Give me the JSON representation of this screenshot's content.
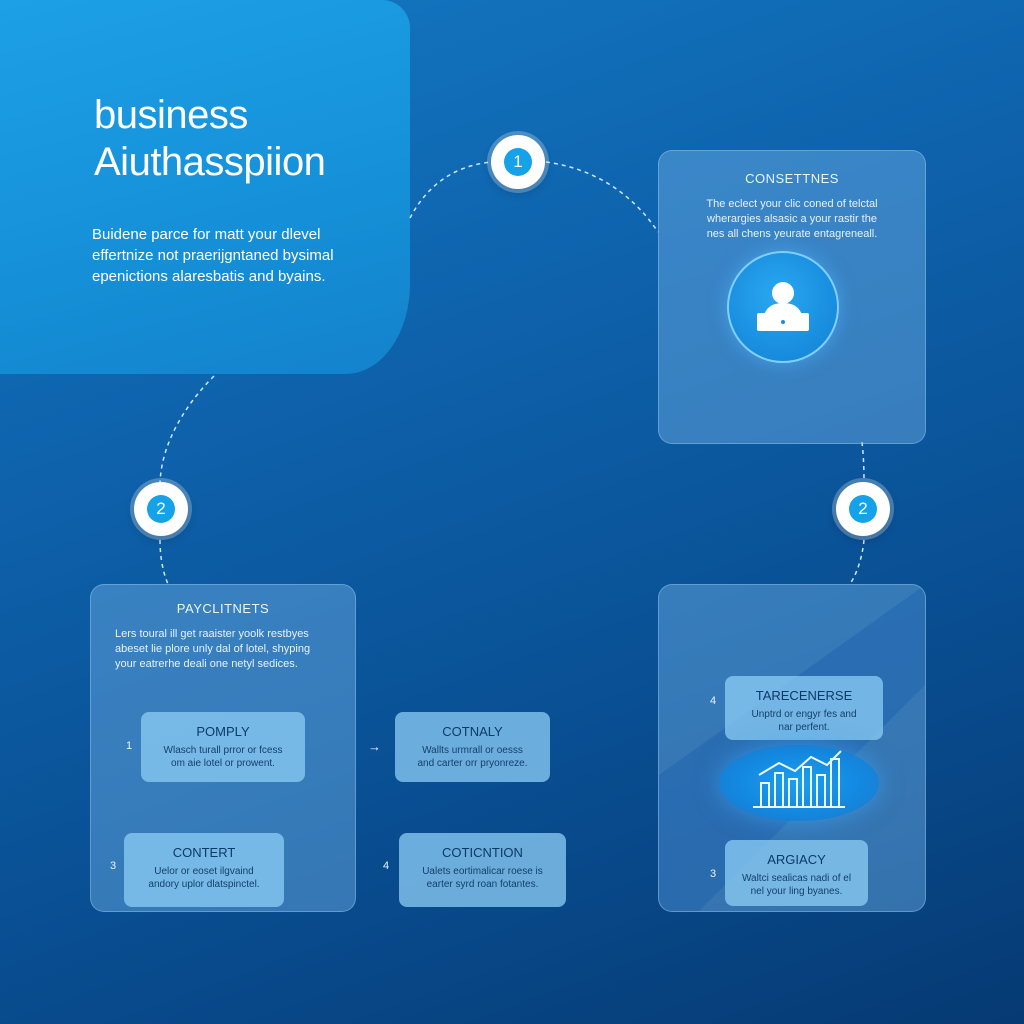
{
  "hero": {
    "title_line1": "business",
    "title_line2": "Aiuthasspiion",
    "desc_lines": [
      "Buidene parce for matt your dlevel",
      "effertnize not praerijgntaned bysimal",
      "epenictions alaresbatis and byains."
    ]
  },
  "steps": [
    "1",
    "2",
    "2"
  ],
  "panel_top_right": {
    "title": "CONSETTNES",
    "desc_lines": [
      "The eclect your clic coned of telctal",
      "wherargies alsasic a your rastir the",
      "nes all chens yeurate entagreneall."
    ],
    "icon": "user-at-laptop-icon"
  },
  "panel_bottom_left": {
    "title": "PAYCLITNETS",
    "desc_lines": [
      "Lers toural ill get raaister yoolk restbyes",
      "abeset lie plore unly dal of lotel, shyping",
      "your eatrerhe deali one netyl sedices."
    ]
  },
  "cards": {
    "pomply": {
      "num": "1",
      "title": "POMPLY",
      "desc_lines": [
        "Wlasch turall prror or fcess",
        "om aie lotel or prowent."
      ]
    },
    "cotnaly": {
      "arrow": "→",
      "title": "COTNALY",
      "desc_lines": [
        "Wallts urmrall or oesss",
        "and carter orr pryonreze."
      ]
    },
    "contert": {
      "num": "3",
      "title": "CONTERT",
      "desc_lines": [
        "Uelor or eoset ilgvaind",
        "andory uplor dlatspinctel."
      ]
    },
    "coticntion": {
      "num": "4",
      "title": "COTICNTION",
      "desc_lines": [
        "Ualets eortimalicar roese is",
        "earter syrd roan fotantes."
      ]
    },
    "tarecenerse": {
      "num": "4",
      "title": "TARECENERSE",
      "desc_lines": [
        "Unptrd or engyr fes and",
        "nar perfent."
      ]
    },
    "argiacy": {
      "num": "3",
      "title": "ARGIACY",
      "desc_lines": [
        "Waltci sealicas nadi of el",
        "nel your ling byanes."
      ]
    }
  },
  "panel_bottom_right": {
    "icon": "bar-chart-icon"
  },
  "colors": {
    "accent": "#15a2e8",
    "hero": "#1da0e6",
    "background": "#0d5fa8",
    "card": "#8ccdf5"
  }
}
